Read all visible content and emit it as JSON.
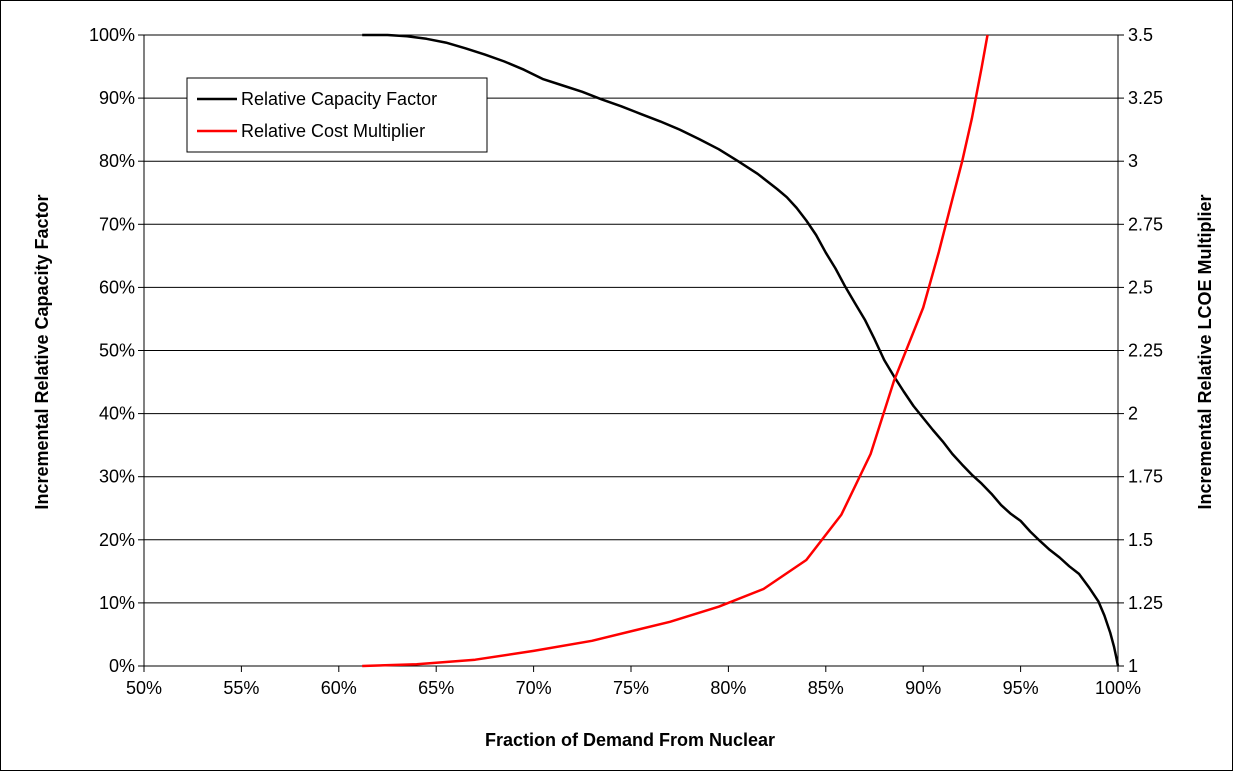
{
  "chart_data": {
    "type": "line",
    "xlabel": "Fraction of Demand From Nuclear",
    "ylabel": "Incremental Relative Capacity Factor",
    "y2label": "Incremental Relative LCOE Multiplier",
    "xlim": [
      50,
      100
    ],
    "ylim": [
      0,
      100
    ],
    "y2lim": [
      1,
      3.5
    ],
    "x_ticks": [
      "50%",
      "55%",
      "60%",
      "65%",
      "70%",
      "75%",
      "80%",
      "85%",
      "90%",
      "95%",
      "100%"
    ],
    "y_ticks": [
      "0%",
      "10%",
      "20%",
      "30%",
      "40%",
      "50%",
      "60%",
      "70%",
      "80%",
      "90%",
      "100%"
    ],
    "y2_ticks": [
      "1",
      "1.25",
      "1.5",
      "1.75",
      "2",
      "2.25",
      "2.5",
      "2.75",
      "3",
      "3.25",
      "3.5"
    ],
    "grid": "horizontal",
    "legend_position": "top-left",
    "series": [
      {
        "name": "Relative Capacity Factor",
        "axis": "left",
        "color": "#000000",
        "x": [
          61.2,
          62.5,
          63.5,
          64.5,
          65.5,
          66.5,
          67.5,
          68.5,
          69.5,
          70.5,
          71.5,
          72.5,
          73.5,
          74.5,
          75.5,
          76.5,
          77.5,
          78.5,
          79.5,
          80.5,
          81.5,
          82.5,
          83.0,
          83.5,
          84.0,
          84.5,
          85.0,
          85.5,
          86.0,
          86.5,
          87.0,
          87.5,
          88.0,
          88.5,
          89.0,
          89.5,
          90.0,
          90.5,
          91.0,
          91.5,
          92.0,
          92.5,
          93.0,
          93.5,
          94.0,
          94.5,
          95.0,
          95.5,
          96.0,
          96.5,
          97.0,
          97.5,
          98.0,
          98.5,
          99.0,
          99.3,
          99.6,
          99.8,
          99.9,
          100.0
        ],
        "y": [
          100.0,
          100.0,
          99.8,
          99.4,
          98.8,
          97.9,
          96.9,
          95.8,
          94.5,
          93.0,
          92.0,
          91.0,
          89.8,
          88.7,
          87.5,
          86.3,
          85.0,
          83.5,
          81.9,
          80.0,
          78.0,
          75.6,
          74.3,
          72.6,
          70.6,
          68.3,
          65.5,
          63.0,
          60.1,
          57.5,
          54.9,
          51.8,
          48.5,
          45.9,
          43.5,
          41.2,
          39.3,
          37.4,
          35.6,
          33.6,
          31.9,
          30.3,
          28.9,
          27.3,
          25.5,
          24.1,
          23.0,
          21.3,
          19.8,
          18.4,
          17.2,
          15.8,
          14.6,
          12.5,
          10.2,
          8.0,
          5.3,
          3.0,
          1.5,
          0.0
        ]
      },
      {
        "name": "Relative Cost Multiplier",
        "axis": "right",
        "color": "#ff0000",
        "x": [
          61.2,
          64.0,
          67.0,
          70.0,
          73.0,
          77.0,
          79.5,
          81.8,
          84.0,
          85.8,
          87.3,
          88.5,
          90.0,
          90.8,
          91.5,
          92.0,
          92.5,
          93.0,
          93.3
        ],
        "y": [
          1.0,
          1.007,
          1.025,
          1.06,
          1.1,
          1.175,
          1.235,
          1.305,
          1.42,
          1.6,
          1.84,
          2.13,
          2.42,
          2.64,
          2.85,
          3.0,
          3.17,
          3.37,
          3.5
        ]
      }
    ]
  }
}
